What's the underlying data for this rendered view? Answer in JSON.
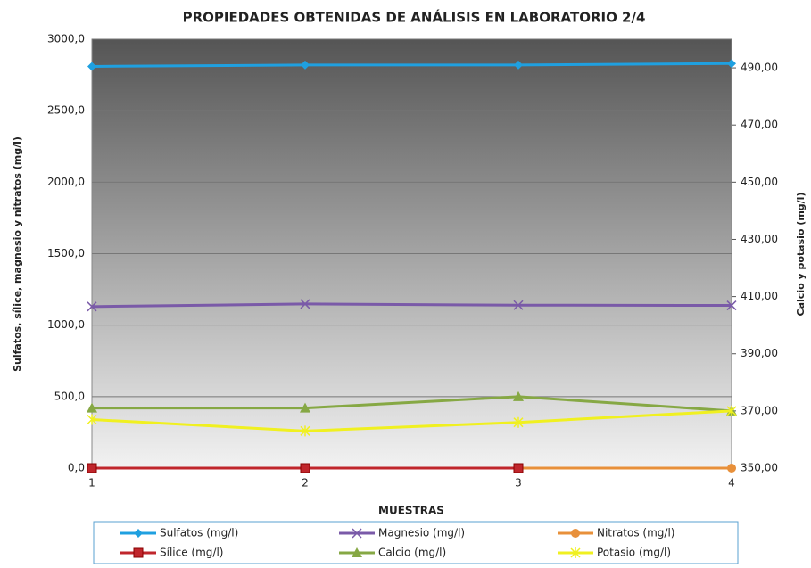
{
  "chart_data": {
    "type": "line",
    "title": "PROPIEDADES OBTENIDAS DE ANÁLISIS EN LABORATORIO 2/4",
    "xlabel": "MUESTRAS",
    "ylabel": "Sulfatos, sílice, magnesio y nitratos (mg/l)",
    "y2label": "Calcio y potasio (mg/l)",
    "categories": [
      "1",
      "2",
      "3",
      "4"
    ],
    "ylim": [
      0,
      3000
    ],
    "yticks": [
      {
        "value": 0,
        "label": "0,0"
      },
      {
        "value": 500,
        "label": "500,0"
      },
      {
        "value": 1000,
        "label": "1000,0"
      },
      {
        "value": 1500,
        "label": "1500,0"
      },
      {
        "value": 2000,
        "label": "2000,0"
      },
      {
        "value": 2500,
        "label": "2500,0"
      },
      {
        "value": 3000,
        "label": "3000,0"
      }
    ],
    "y2lim": [
      350,
      500
    ],
    "y2ticks": [
      {
        "value": 350,
        "label": "350,00"
      },
      {
        "value": 370,
        "label": "370,00"
      },
      {
        "value": 390,
        "label": "390,00"
      },
      {
        "value": 410,
        "label": "410,00"
      },
      {
        "value": 430,
        "label": "430,00"
      },
      {
        "value": 450,
        "label": "450,00"
      },
      {
        "value": 470,
        "label": "470,00"
      },
      {
        "value": 490,
        "label": "490,00"
      }
    ],
    "grid": true,
    "legend": "bottom",
    "series": [
      {
        "name": "Sulfatos (mg/l)",
        "color": "#1fa0e0",
        "marker": "diamond",
        "values": [
          2810,
          2820,
          2820,
          2830
        ]
      },
      {
        "name": "Magnesio (mg/l)",
        "color": "#7a5aa8",
        "marker": "x",
        "values": [
          1130,
          1148,
          1140,
          1138
        ]
      },
      {
        "name": "Nitratos (mg/l)",
        "color": "#e8903a",
        "marker": "circle",
        "values": [
          0,
          0,
          0,
          0
        ]
      },
      {
        "name": "Sílice (mg/l)",
        "color": "#c0262c",
        "marker": "square",
        "values": [
          0,
          0,
          0,
          null
        ]
      },
      {
        "name": "Calcio (mg/l)",
        "color": "#86a844",
        "marker": "triangle",
        "axis": "y2",
        "values": [
          371,
          371,
          375,
          370
        ]
      },
      {
        "name": "Potasio (mg/l)",
        "color": "#f0f020",
        "marker": "star",
        "axis": "y2",
        "values": [
          367,
          363,
          366,
          370
        ]
      }
    ]
  }
}
